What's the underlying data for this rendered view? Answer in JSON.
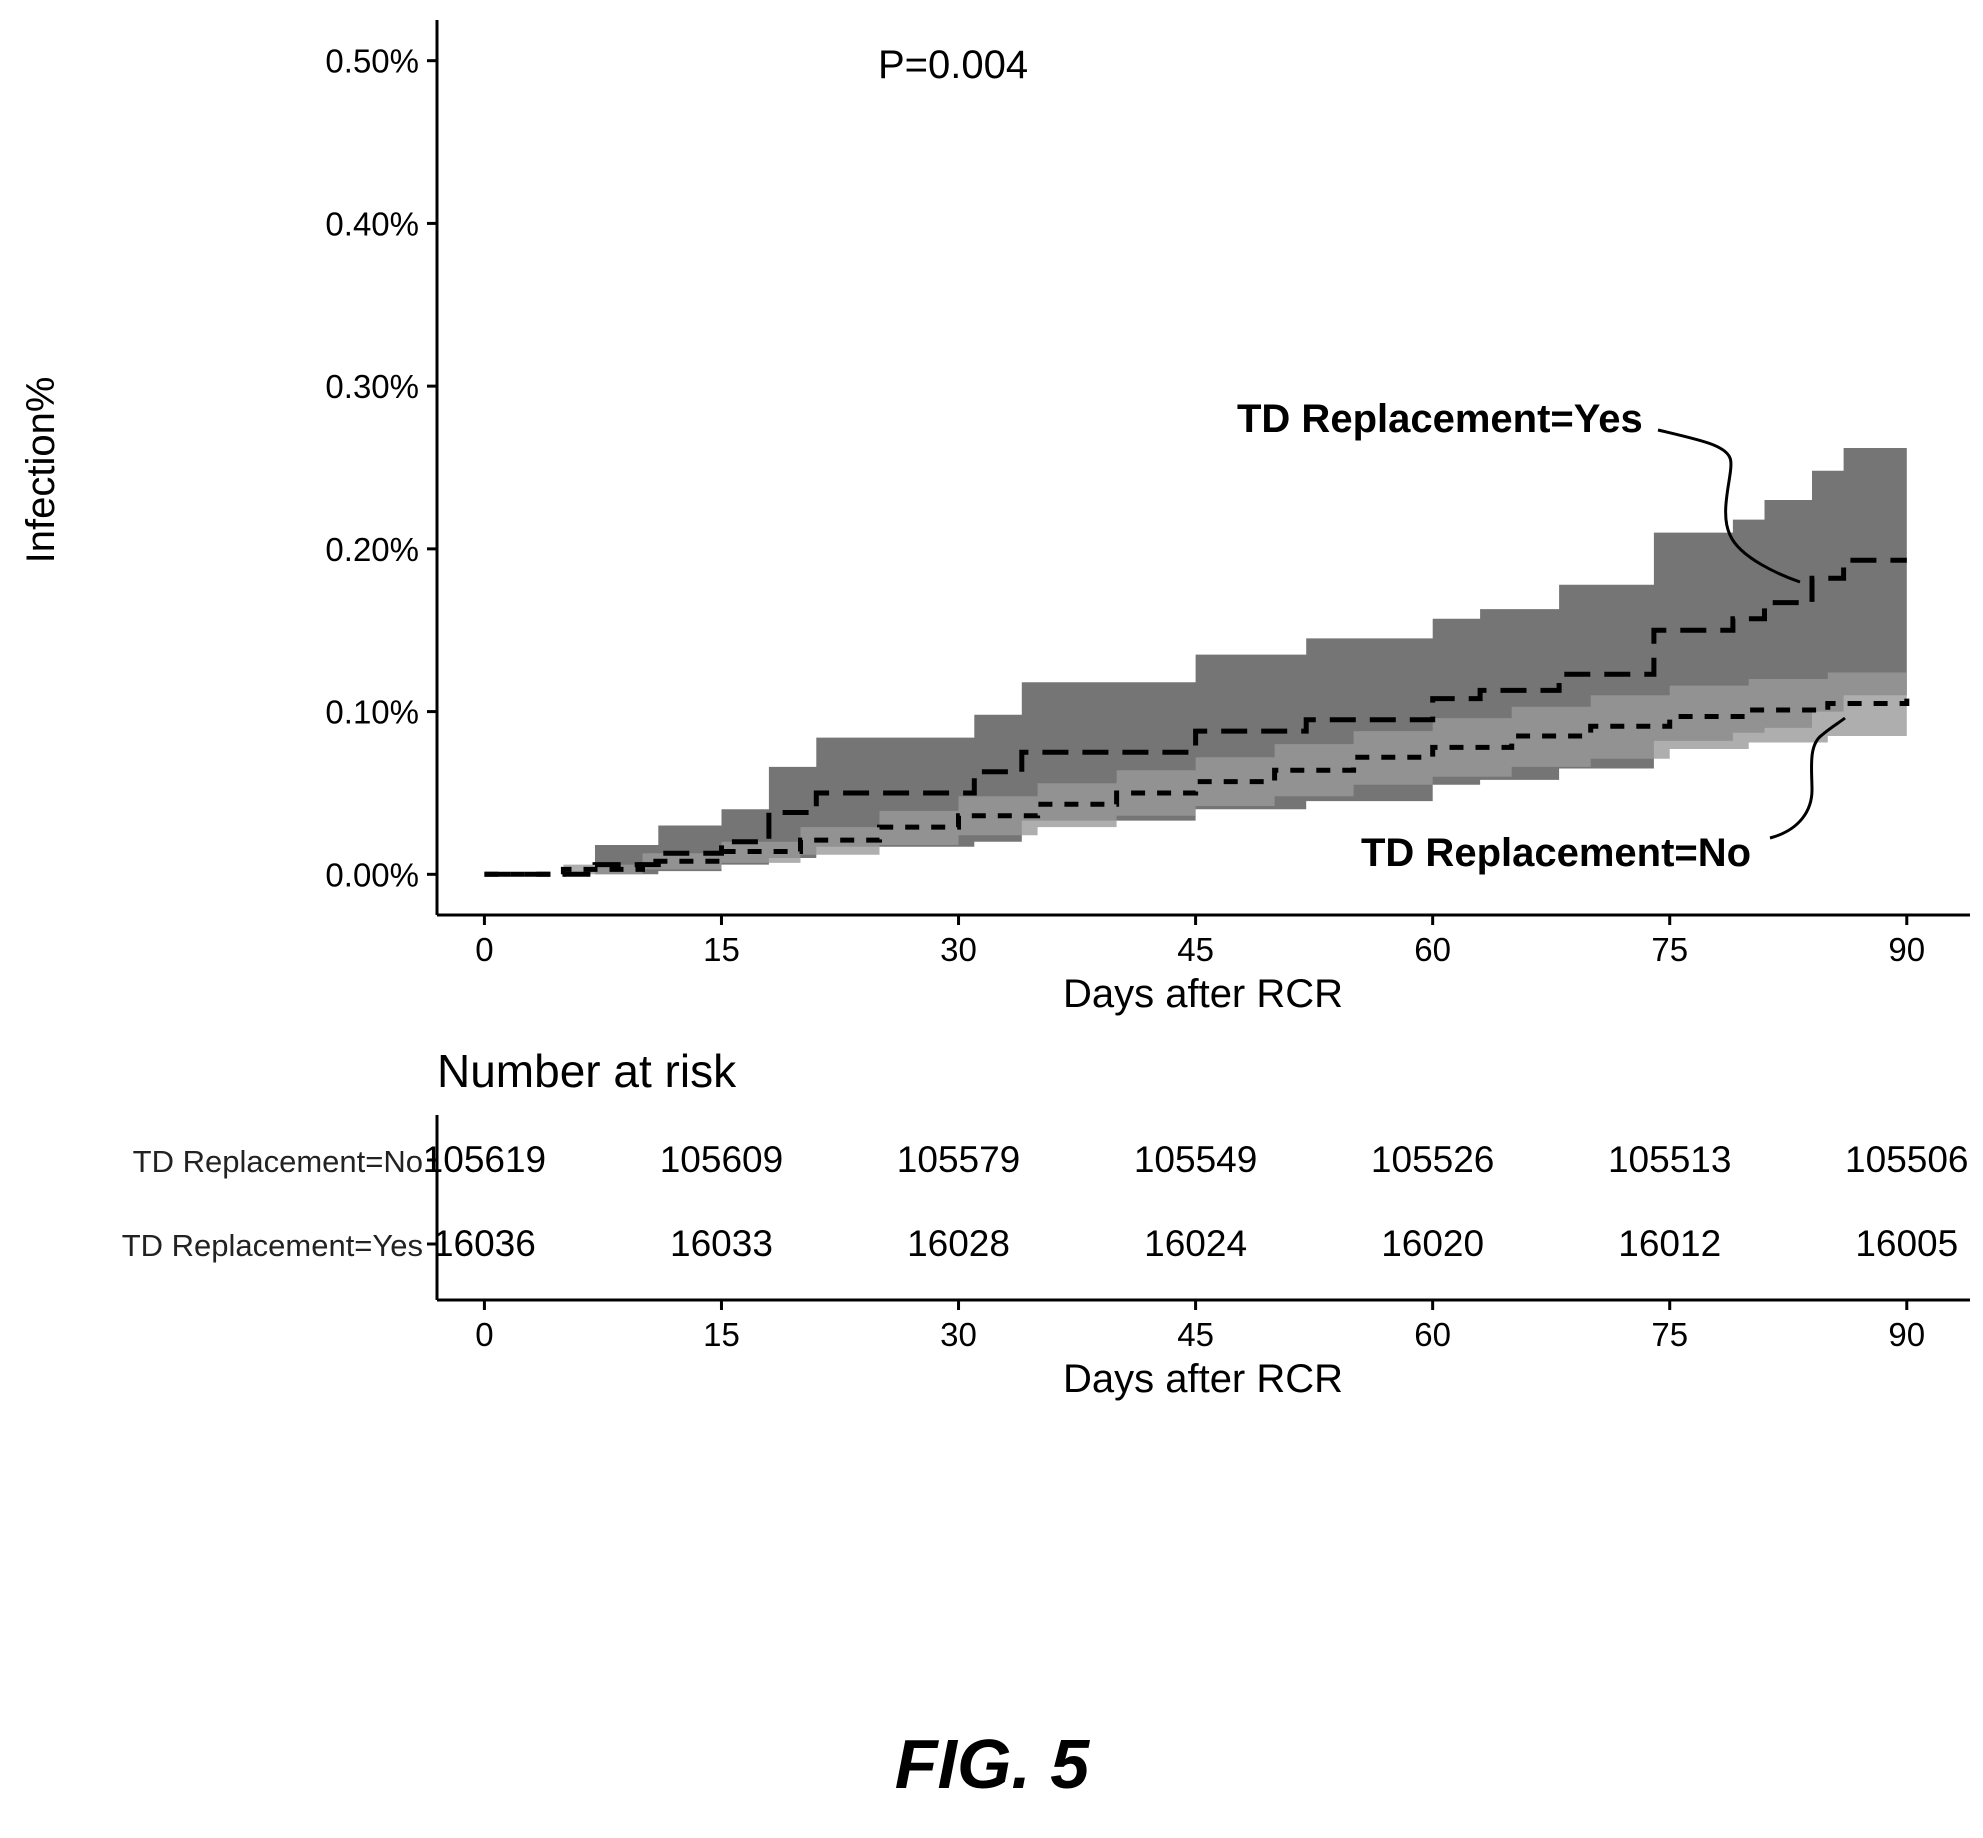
{
  "chart_data": [
    {
      "type": "line",
      "subtype": "kaplan-meier cumulative incidence with confidence bands",
      "annotation_pvalue": "P=0.004",
      "xlabel": "Days after RCR",
      "ylabel": "Infection%",
      "xlim": [
        -3,
        94
      ],
      "ylim": [
        -0.025,
        0.525
      ],
      "x_ticks": [
        "0",
        "15",
        "30",
        "45",
        "60",
        "75",
        "90"
      ],
      "y_ticks": [
        "0.00%",
        "0.10%",
        "0.20%",
        "0.30%",
        "0.40%",
        "0.50%"
      ],
      "y_tick_values": [
        0.0,
        0.1,
        0.2,
        0.3,
        0.4,
        0.5
      ],
      "series": [
        {
          "name": "TD Replacement=Yes",
          "label": "TD Replacement=Yes",
          "line_style": "long-dash",
          "band_color": "#6e6e6e",
          "x": [
            0,
            7,
            11,
            15,
            18,
            21,
            31,
            34,
            45,
            52,
            60,
            63,
            68,
            74,
            79,
            81,
            84,
            86,
            90
          ],
          "y": [
            0.0,
            0.006,
            0.013,
            0.02,
            0.038,
            0.05,
            0.063,
            0.075,
            0.088,
            0.095,
            0.108,
            0.113,
            0.123,
            0.15,
            0.157,
            0.167,
            0.182,
            0.193,
            0.193
          ],
          "lower": [
            0.0,
            0.0,
            0.002,
            0.006,
            0.01,
            0.017,
            0.02,
            0.033,
            0.04,
            0.045,
            0.055,
            0.058,
            0.065,
            0.082,
            0.087,
            0.09,
            0.1,
            0.11,
            0.11
          ],
          "upper": [
            0.0,
            0.018,
            0.03,
            0.04,
            0.066,
            0.084,
            0.098,
            0.118,
            0.135,
            0.145,
            0.157,
            0.163,
            0.178,
            0.21,
            0.218,
            0.23,
            0.248,
            0.262,
            0.262
          ]
        },
        {
          "name": "TD Replacement=No",
          "label": "TD Replacement=No",
          "line_style": "short-dash",
          "band_color": "#9a9a9a",
          "x": [
            0,
            5,
            10,
            15,
            20,
            25,
            30,
            35,
            40,
            45,
            50,
            55,
            60,
            65,
            70,
            75,
            80,
            85,
            90
          ],
          "y": [
            0.0,
            0.003,
            0.008,
            0.014,
            0.021,
            0.029,
            0.036,
            0.043,
            0.05,
            0.057,
            0.064,
            0.072,
            0.078,
            0.085,
            0.091,
            0.097,
            0.101,
            0.105,
            0.108
          ],
          "lower": [
            0.0,
            0.0,
            0.003,
            0.007,
            0.012,
            0.018,
            0.024,
            0.029,
            0.036,
            0.042,
            0.048,
            0.055,
            0.06,
            0.066,
            0.071,
            0.077,
            0.081,
            0.085,
            0.088
          ],
          "upper": [
            0.0,
            0.006,
            0.013,
            0.02,
            0.029,
            0.039,
            0.048,
            0.056,
            0.064,
            0.072,
            0.08,
            0.088,
            0.096,
            0.103,
            0.11,
            0.116,
            0.12,
            0.124,
            0.127
          ]
        }
      ]
    },
    {
      "type": "table",
      "title": "Number at risk",
      "xlabel": "Days after RCR",
      "x_ticks": [
        "0",
        "15",
        "30",
        "45",
        "60",
        "75",
        "90"
      ],
      "rows": [
        {
          "label": "TD Replacement=No",
          "values": [
            "105619",
            "105609",
            "105579",
            "105549",
            "105526",
            "105513",
            "105506"
          ]
        },
        {
          "label": "TD Replacement=Yes",
          "values": [
            "16036",
            "16033",
            "16028",
            "16024",
            "16020",
            "16012",
            "16005"
          ]
        }
      ]
    }
  ],
  "figure_caption": "FIG. 5"
}
